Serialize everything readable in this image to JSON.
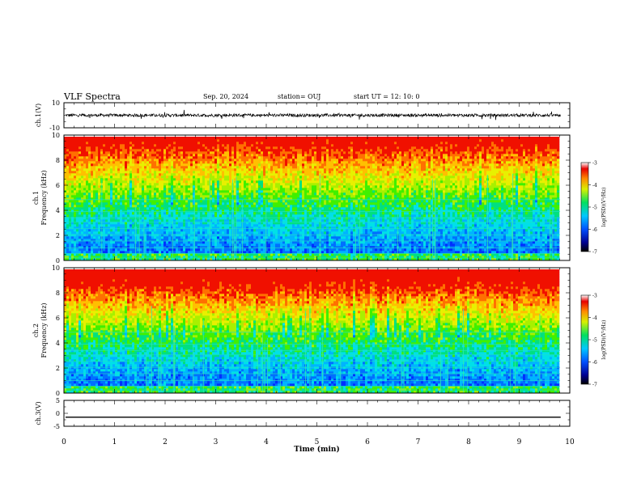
{
  "header": {
    "title": "VLF Spectra",
    "date": "Sep. 20, 2024",
    "station": "station= OUJ",
    "start": "start  UT  =   12: 10: 0"
  },
  "chart_data": [
    {
      "type": "line",
      "title": "",
      "ylabel": "ch.1(V)",
      "ylim": [
        -10,
        10
      ],
      "yticks": [
        "10",
        "-10"
      ],
      "xlim": [
        0,
        10
      ],
      "series": [
        {
          "baseline": 0,
          "visible_range": [
            0,
            9.82
          ]
        }
      ]
    },
    {
      "type": "heatmap",
      "ylabel": "ch.1\nFrequency (kHz)",
      "ylabel_parts": [
        "ch.1",
        "Frequency (kHz)"
      ],
      "ylim": [
        0,
        10
      ],
      "yticks": [
        "0",
        "2",
        "4",
        "6",
        "8",
        "10"
      ],
      "xlim": [
        0,
        10
      ],
      "colorbar": {
        "label": "log(PSD)(V²/Hz)",
        "range": [
          -7,
          -3
        ],
        "ticks": [
          "-3",
          "-4",
          "-5",
          "-6",
          "-7"
        ]
      }
    },
    {
      "type": "heatmap",
      "ylabel": "ch.2\nFrequency (kHz)",
      "ylabel_parts": [
        "ch.2",
        "Frequency (kHz)"
      ],
      "ylim": [
        0,
        10
      ],
      "yticks": [
        "0",
        "2",
        "4",
        "6",
        "8",
        "10"
      ],
      "xlim": [
        0,
        10
      ],
      "colorbar": {
        "label": "log(PSD)(V²/Hz)",
        "range": [
          -7,
          -3
        ],
        "ticks": [
          "-3",
          "-4",
          "-5",
          "-6",
          "-7"
        ]
      }
    },
    {
      "type": "line",
      "ylabel": "ch.3(V)",
      "ylim": [
        -5,
        5
      ],
      "yticks": [
        "5",
        "0",
        "-5"
      ],
      "xlim": [
        0,
        10
      ],
      "xlabel": "Time (min)",
      "xticks": [
        "0",
        "1",
        "2",
        "3",
        "4",
        "5",
        "6",
        "7",
        "8",
        "9",
        "10"
      ],
      "series": [
        {
          "value": -1.5
        }
      ]
    }
  ]
}
